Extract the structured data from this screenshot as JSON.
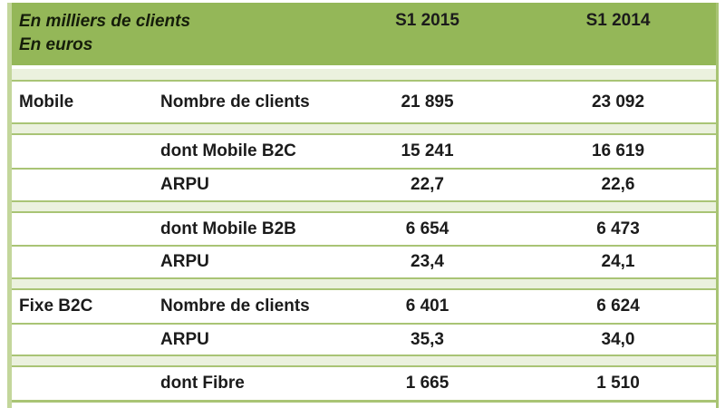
{
  "table": {
    "unit_note_line1": "En milliers de clients",
    "unit_note_line2": "En euros",
    "columns": {
      "col_2015": "S1 2015",
      "col_2014": "S1 2014"
    },
    "rows": [
      {
        "category": "Mobile",
        "label": "Nombre de clients",
        "s1_2015": "21 895",
        "s1_2014": "23 092"
      },
      {
        "category": "",
        "label": "dont Mobile B2C",
        "s1_2015": "15 241",
        "s1_2014": "16 619"
      },
      {
        "category": "",
        "label": "ARPU",
        "s1_2015": "22,7",
        "s1_2014": "22,6"
      },
      {
        "category": "",
        "label": "dont Mobile B2B",
        "s1_2015": "6 654",
        "s1_2014": "6 473"
      },
      {
        "category": "",
        "label": "ARPU",
        "s1_2015": "23,4",
        "s1_2014": "24,1"
      },
      {
        "category": "Fixe B2C",
        "label": "Nombre de clients",
        "s1_2015": "6 401",
        "s1_2014": "6 624"
      },
      {
        "category": "",
        "label": "ARPU",
        "s1_2015": "35,3",
        "s1_2014": "34,0"
      },
      {
        "category": "",
        "label": "dont Fibre",
        "s1_2015": "1 665",
        "s1_2014": "1 510"
      }
    ],
    "colors": {
      "header_bg": "#94b758",
      "band_bg": "#ebf1de",
      "grid_line": "#a9c475",
      "left_border": "#c3d69b",
      "text": "#1b1b1b"
    }
  }
}
